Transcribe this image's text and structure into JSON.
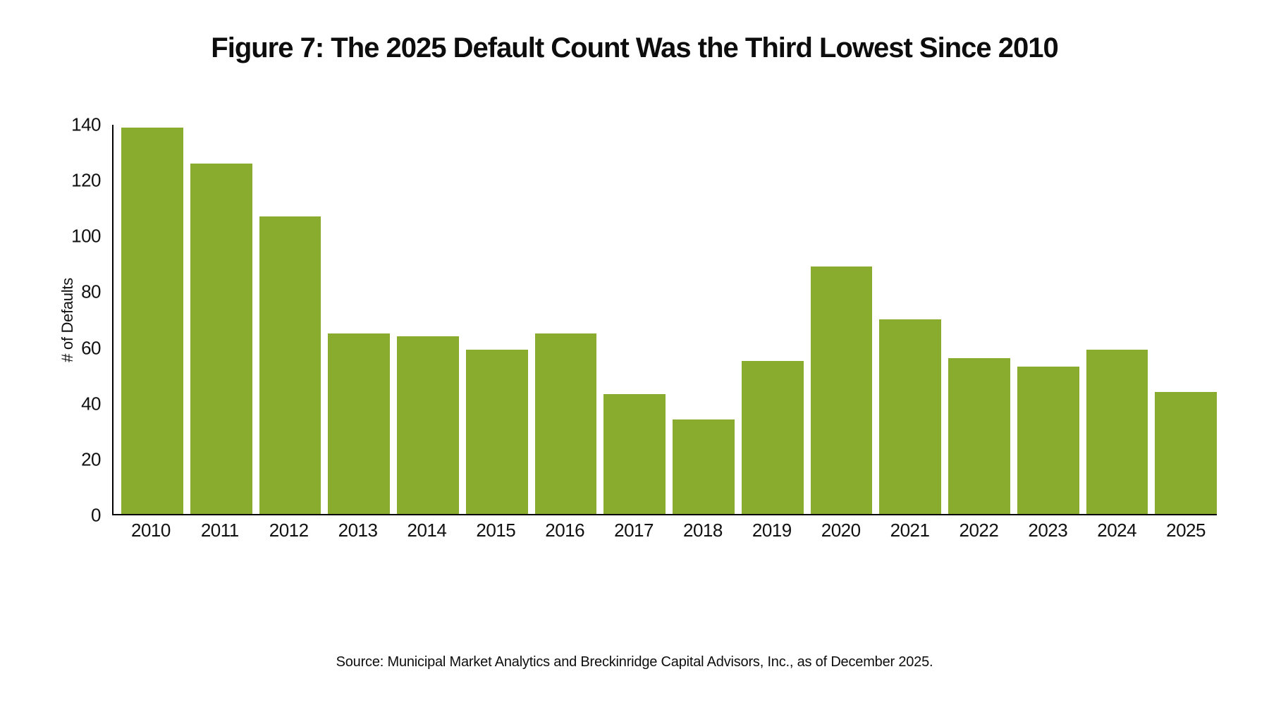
{
  "figure": {
    "title": "Figure 7: The 2025 Default Count Was the Third Lowest Since 2010",
    "source": "Source: Municipal Market Analytics and Breckinridge Capital Advisors, Inc., as of December 2025."
  },
  "chart_data": {
    "type": "bar",
    "title": "Figure 7: The 2025 Default Count Was the Third Lowest Since 2010",
    "categories": [
      "2010",
      "2011",
      "2012",
      "2013",
      "2014",
      "2015",
      "2016",
      "2017",
      "2018",
      "2019",
      "2020",
      "2021",
      "2022",
      "2023",
      "2024",
      "2025"
    ],
    "values": [
      139,
      126,
      107,
      65,
      64,
      59,
      65,
      43,
      34,
      55,
      89,
      70,
      56,
      53,
      59,
      44
    ],
    "xlabel": "",
    "ylabel": "# of Defaults",
    "ylim": [
      0,
      140
    ],
    "yticks": [
      0,
      20,
      40,
      60,
      80,
      100,
      120,
      140
    ],
    "grid": false,
    "legend": false,
    "bar_color": "#89AB2E",
    "axis_color": "#000000",
    "annotation": "Source: Municipal Market Analytics and Breckinridge Capital Advisors, Inc., as of December 2025."
  }
}
